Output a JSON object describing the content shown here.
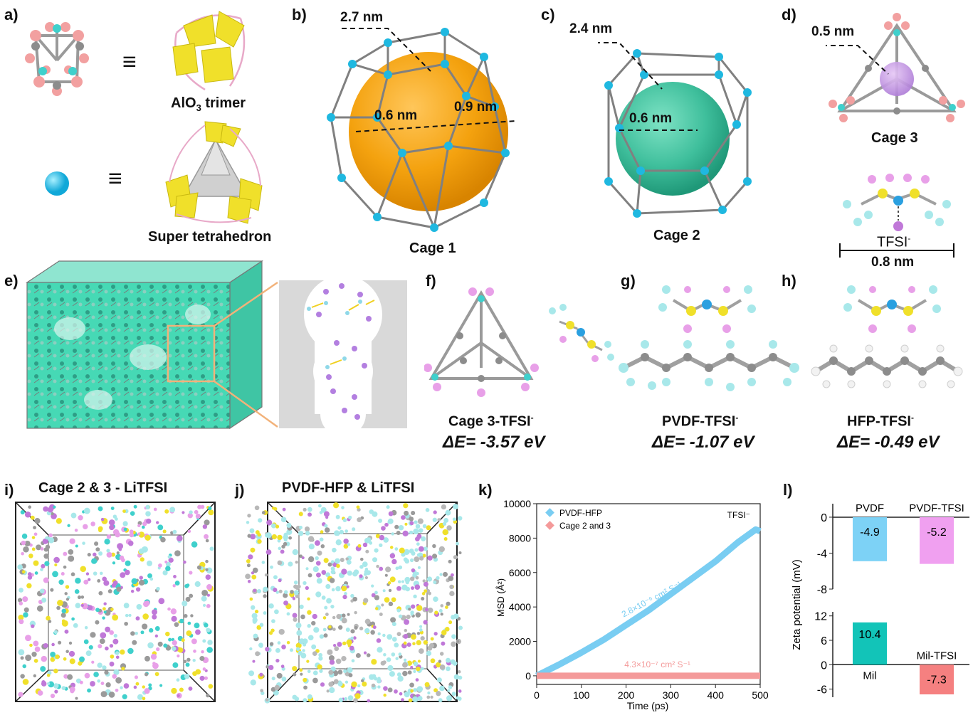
{
  "panels": {
    "a": {
      "label": "a)",
      "equiv": "≡",
      "trimer_label": "AlO",
      "trimer_sub": "3",
      "trimer_rest": " trimer",
      "super_label": "Super tetrahedron"
    },
    "b": {
      "label": "b)",
      "dim_outer": "2.7 nm",
      "dim_left": "0.6 nm",
      "dim_right": "0.9 nm",
      "caption": "Cage 1",
      "sphere_color": "#f4a20f",
      "node_color": "#22b8dc"
    },
    "c": {
      "label": "c)",
      "dim_outer": "2.4 nm",
      "dim_inner": "0.6 nm",
      "caption": "Cage 2",
      "sphere_color": "#3fbf9c"
    },
    "d": {
      "label": "d)",
      "dim_outer": "0.5 nm",
      "caption": "Cage 3",
      "tfsi_label": "TFSI",
      "tfsi_sup": "-",
      "tfsi_size": "0.8 nm",
      "sphere_color": "#c797e3"
    },
    "e": {
      "label": "e)",
      "surface_color": "#45d8b4"
    },
    "f": {
      "label": "f)",
      "name": "Cage 3-TFSI",
      "sup": "-",
      "energy": "ΔE= -3.57 eV"
    },
    "g": {
      "label": "g)",
      "name": "PVDF-TFSI",
      "sup": "-",
      "energy": "ΔE= -1.07 eV"
    },
    "h": {
      "label": "h)",
      "name": "HFP-TFSI",
      "sup": "-",
      "energy": "ΔE= -0.49 eV"
    },
    "i": {
      "label": "i)",
      "title": "Cage 2 & 3 - LiTFSI"
    },
    "j": {
      "label": "j)",
      "title": "PVDF-HFP & LiTFSI"
    },
    "k": {
      "label": "k)"
    },
    "l": {
      "label": "l)"
    }
  },
  "chart_data": [
    {
      "id": "k",
      "type": "line",
      "xlabel": "Time (ps)",
      "ylabel": "MSD (Å²)",
      "xlim": [
        0,
        500
      ],
      "ylim": [
        -500,
        10000
      ],
      "xticks": [
        0,
        100,
        200,
        300,
        400,
        500
      ],
      "yticks": [
        0,
        2000,
        4000,
        6000,
        8000,
        10000
      ],
      "annotation": "TFSI⁻",
      "legend_position": "top-left",
      "series": [
        {
          "name": "PVDF-HFP",
          "color": "#79cdf2",
          "x": [
            0,
            50,
            100,
            150,
            200,
            250,
            300,
            350,
            400,
            450,
            490,
            500
          ],
          "y": [
            0,
            650,
            1350,
            2100,
            2950,
            3800,
            4750,
            5700,
            6650,
            7750,
            8500,
            8400
          ],
          "label": "2.8×10⁻⁶ cm² S⁻¹"
        },
        {
          "name": "Cage 2 and 3",
          "color": "#f49a9a",
          "x": [
            0,
            100,
            200,
            300,
            400,
            500
          ],
          "y": [
            0,
            0,
            0,
            0,
            0,
            0
          ],
          "label": "4.3×10⁻⁷ cm² S⁻¹"
        }
      ]
    },
    {
      "id": "l",
      "type": "bar",
      "ylabel": "Zeta potential (mV)",
      "groups": [
        {
          "ylim": [
            -8,
            0
          ],
          "yticks": [
            0,
            -4,
            -8
          ],
          "bars": [
            {
              "category": "PVDF",
              "value": -4.9,
              "color": "#7dd2f6"
            },
            {
              "category": "PVDF-TFSI",
              "value": -5.2,
              "color": "#f0a0f0"
            }
          ]
        },
        {
          "ylim": [
            -8,
            12
          ],
          "yticks": [
            12,
            6,
            0,
            -6
          ],
          "bars": [
            {
              "category": "Mil",
              "value": 10.4,
              "color": "#12c4b8"
            },
            {
              "category": "Mil-TFSI",
              "value": -7.3,
              "color": "#f58080"
            }
          ]
        }
      ]
    }
  ]
}
